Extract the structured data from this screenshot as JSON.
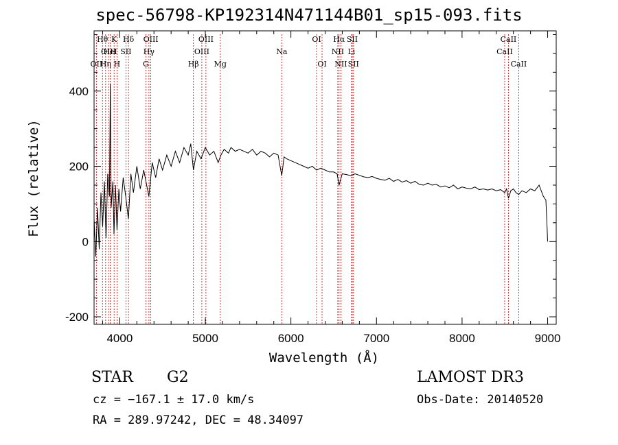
{
  "chart_data": {
    "type": "line",
    "title": "spec-56798-KP192314N471144B01_sp15-093.fits",
    "xlabel": "Wavelength (Å)",
    "ylabel": "Flux (relative)",
    "xlim": [
      3700,
      9100
    ],
    "ylim": [
      -220,
      560
    ],
    "xticks": [
      4000,
      5000,
      6000,
      7000,
      8000,
      9000
    ],
    "yticks": [
      -200,
      0,
      200,
      400
    ],
    "series": [
      {
        "name": "spectrum",
        "x": [
          3700,
          3720,
          3740,
          3760,
          3780,
          3800,
          3820,
          3840,
          3860,
          3880,
          3890,
          3900,
          3920,
          3933,
          3950,
          3968,
          3990,
          4010,
          4040,
          4070,
          4101,
          4130,
          4160,
          4200,
          4240,
          4280,
          4340,
          4380,
          4420,
          4460,
          4500,
          4550,
          4600,
          4650,
          4700,
          4750,
          4800,
          4830,
          4861,
          4900,
          4950,
          5000,
          5050,
          5100,
          5150,
          5183,
          5220,
          5270,
          5300,
          5350,
          5400,
          5450,
          5500,
          5550,
          5600,
          5650,
          5700,
          5750,
          5800,
          5850,
          5893,
          5920,
          5950,
          6000,
          6050,
          6100,
          6150,
          6200,
          6250,
          6300,
          6350,
          6400,
          6450,
          6500,
          6540,
          6563,
          6600,
          6650,
          6700,
          6750,
          6800,
          6850,
          6900,
          6950,
          7000,
          7050,
          7100,
          7150,
          7200,
          7250,
          7300,
          7350,
          7400,
          7450,
          7500,
          7550,
          7600,
          7650,
          7700,
          7750,
          7800,
          7850,
          7900,
          7950,
          8000,
          8050,
          8100,
          8150,
          8200,
          8250,
          8300,
          8350,
          8400,
          8450,
          8498,
          8520,
          8542,
          8570,
          8600,
          8630,
          8662,
          8700,
          8750,
          8800,
          8850,
          8900,
          8950,
          8980,
          8995,
          9000
        ],
        "values": [
          60,
          -40,
          90,
          -20,
          130,
          40,
          160,
          10,
          180,
          120,
          420,
          90,
          160,
          20,
          150,
          30,
          140,
          80,
          170,
          120,
          60,
          180,
          130,
          200,
          140,
          190,
          120,
          210,
          170,
          220,
          190,
          230,
          200,
          240,
          210,
          250,
          230,
          260,
          190,
          240,
          220,
          250,
          230,
          240,
          210,
          230,
          245,
          235,
          250,
          240,
          245,
          240,
          235,
          245,
          230,
          240,
          235,
          225,
          235,
          230,
          175,
          225,
          220,
          215,
          210,
          205,
          200,
          195,
          200,
          190,
          195,
          190,
          185,
          185,
          180,
          150,
          180,
          178,
          175,
          180,
          176,
          172,
          170,
          173,
          168,
          165,
          163,
          168,
          160,
          165,
          158,
          162,
          155,
          160,
          152,
          150,
          155,
          150,
          152,
          145,
          148,
          143,
          150,
          140,
          145,
          142,
          140,
          145,
          138,
          140,
          137,
          140,
          135,
          138,
          130,
          140,
          115,
          135,
          140,
          130,
          125,
          135,
          130,
          140,
          135,
          150,
          120,
          110,
          30,
          0
        ]
      }
    ],
    "line_markers": [
      {
        "label": "OII",
        "x": 3727,
        "row": 2
      },
      {
        "label": "Hθ",
        "x": 3798,
        "row": 0
      },
      {
        "label": "OIII",
        "x": 3869,
        "row": 1
      },
      {
        "label": "Hη",
        "x": 3835,
        "row": 2
      },
      {
        "label": "HeI",
        "x": 3889,
        "row": 1
      },
      {
        "label": "K",
        "x": 3934,
        "row": 0
      },
      {
        "label": "H",
        "x": 3968,
        "row": 2
      },
      {
        "label": "Hδ",
        "x": 4102,
        "row": 0
      },
      {
        "label": "SII",
        "x": 4072,
        "row": 1
      },
      {
        "label": "OIII",
        "x": 4363,
        "row": 0
      },
      {
        "label": "Hγ",
        "x": 4341,
        "row": 1
      },
      {
        "label": "G",
        "x": 4305,
        "row": 2
      },
      {
        "label": "Hβ",
        "x": 4861,
        "row": 2
      },
      {
        "label": "OIII",
        "x": 5007,
        "row": 0
      },
      {
        "label": "OIII",
        "x": 4959,
        "row": 1
      },
      {
        "label": "Mg",
        "x": 5175,
        "row": 2
      },
      {
        "label": "Na",
        "x": 5893,
        "row": 1
      },
      {
        "label": "OI",
        "x": 6300,
        "row": 0
      },
      {
        "label": "OI",
        "x": 6364,
        "row": 2
      },
      {
        "label": "Hα",
        "x": 6563,
        "row": 0
      },
      {
        "label": "NII",
        "x": 6548,
        "row": 1
      },
      {
        "label": "NII",
        "x": 6584,
        "row": 2
      },
      {
        "label": "SII",
        "x": 6717,
        "row": 0
      },
      {
        "label": "Li",
        "x": 6708,
        "row": 1
      },
      {
        "label": "SII",
        "x": 6731,
        "row": 2
      },
      {
        "label": "CaII",
        "x": 8542,
        "row": 0
      },
      {
        "label": "CaII",
        "x": 8498,
        "row": 1
      },
      {
        "label": "CaII",
        "x": 8662,
        "row": 2
      }
    ]
  },
  "info": {
    "object_class": "STAR",
    "subclass": "G2",
    "survey": "LAMOST DR3",
    "cz": "cz = −167.1 ± 17.0 km/s",
    "obs_date": "Obs-Date: 20140520",
    "coords": "RA = 289.97242, DEC =  48.34097"
  },
  "colors": {
    "spectrum": "#000000",
    "line_marker": "#cc0000",
    "axes": "#000000"
  }
}
